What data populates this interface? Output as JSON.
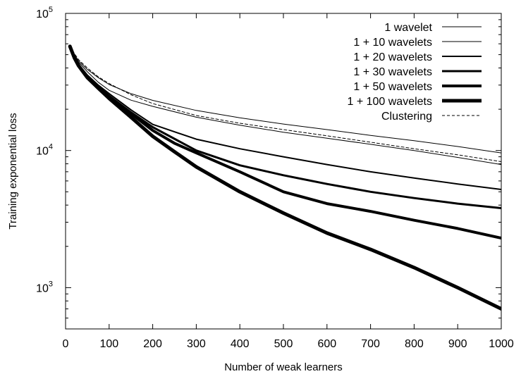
{
  "chart_data": {
    "type": "line",
    "title": "",
    "xlabel": "Number of weak learners",
    "ylabel": "Training exponential loss",
    "xlim": [
      0,
      1000
    ],
    "ylim": [
      500,
      100000
    ],
    "yscale": "log",
    "grid": false,
    "legend_position": "top-right",
    "x_ticks": [
      0,
      100,
      200,
      300,
      400,
      500,
      600,
      700,
      800,
      900,
      1000
    ],
    "x_tick_labels": [
      "0",
      "100",
      "200",
      "300",
      "400",
      "500",
      "600",
      "700",
      "800",
      "900",
      "1000"
    ],
    "y_ticks": [
      1000,
      10000,
      100000
    ],
    "y_tick_labels": [
      {
        "base": "10",
        "exp": "3"
      },
      {
        "base": "10",
        "exp": "4"
      },
      {
        "base": "10",
        "exp": "5"
      }
    ],
    "series": [
      {
        "name": "1 wavelet",
        "stroke_width": 1,
        "dash": "",
        "x": [
          10,
          20,
          30,
          50,
          75,
          100,
          150,
          200,
          300,
          400,
          500,
          600,
          700,
          800,
          900,
          1000
        ],
        "y": [
          57500,
          50000,
          45000,
          39000,
          34000,
          30300,
          26000,
          23200,
          19600,
          17300,
          15600,
          14200,
          12900,
          11800,
          10700,
          9600
        ]
      },
      {
        "name": "1 + 10 wavelets",
        "stroke_width": 1,
        "dash": "",
        "x": [
          10,
          20,
          30,
          50,
          75,
          100,
          150,
          200,
          300,
          400,
          500,
          600,
          700,
          800,
          900,
          1000
        ],
        "y": [
          57500,
          49500,
          44000,
          37500,
          31500,
          27500,
          23300,
          21000,
          17500,
          15300,
          13600,
          12300,
          11100,
          10000,
          8900,
          7900
        ]
      },
      {
        "name": "1 + 20 wavelets",
        "stroke_width": 2,
        "dash": "",
        "x": [
          10,
          20,
          30,
          50,
          75,
          100,
          150,
          200,
          300,
          400,
          500,
          600,
          700,
          800,
          900,
          1000
        ],
        "y": [
          57500,
          48500,
          42500,
          35500,
          30000,
          26000,
          19800,
          15500,
          12100,
          10300,
          9000,
          7900,
          7000,
          6300,
          5700,
          5200
        ]
      },
      {
        "name": "1 + 30 wavelets",
        "stroke_width": 3,
        "dash": "",
        "x": [
          10,
          20,
          30,
          50,
          75,
          100,
          150,
          200,
          300,
          400,
          500,
          600,
          700,
          800,
          900,
          1000
        ],
        "y": [
          57500,
          48000,
          42000,
          35000,
          29000,
          25000,
          19000,
          14800,
          10000,
          7800,
          6600,
          5700,
          5000,
          4500,
          4100,
          3800
        ]
      },
      {
        "name": "1 + 50 wavelets",
        "stroke_width": 4,
        "dash": "",
        "x": [
          10,
          20,
          30,
          50,
          75,
          100,
          150,
          200,
          250,
          300,
          400,
          500,
          600,
          700,
          800,
          900,
          1000
        ],
        "y": [
          57500,
          47500,
          41500,
          34500,
          29000,
          24800,
          18600,
          14000,
          11300,
          9600,
          7000,
          5000,
          4100,
          3600,
          3100,
          2700,
          2300
        ]
      },
      {
        "name": "1 + 100 wavelets",
        "stroke_width": 5,
        "dash": "",
        "x": [
          10,
          20,
          30,
          50,
          75,
          100,
          150,
          200,
          250,
          300,
          400,
          500,
          600,
          700,
          800,
          900,
          1000
        ],
        "y": [
          57500,
          47500,
          41500,
          34000,
          28500,
          24000,
          17500,
          12700,
          9800,
          7600,
          5000,
          3500,
          2500,
          1900,
          1400,
          1000,
          700
        ]
      },
      {
        "name": "Clustering",
        "stroke_width": 1,
        "dash": "4,3",
        "x": [
          10,
          20,
          30,
          50,
          75,
          100,
          150,
          200,
          300,
          400,
          500,
          600,
          700,
          800,
          900,
          1000
        ],
        "y": [
          57500,
          51000,
          46000,
          40000,
          34500,
          30800,
          25500,
          22000,
          18000,
          15800,
          14200,
          12800,
          11500,
          10300,
          9300,
          8300
        ]
      }
    ]
  }
}
